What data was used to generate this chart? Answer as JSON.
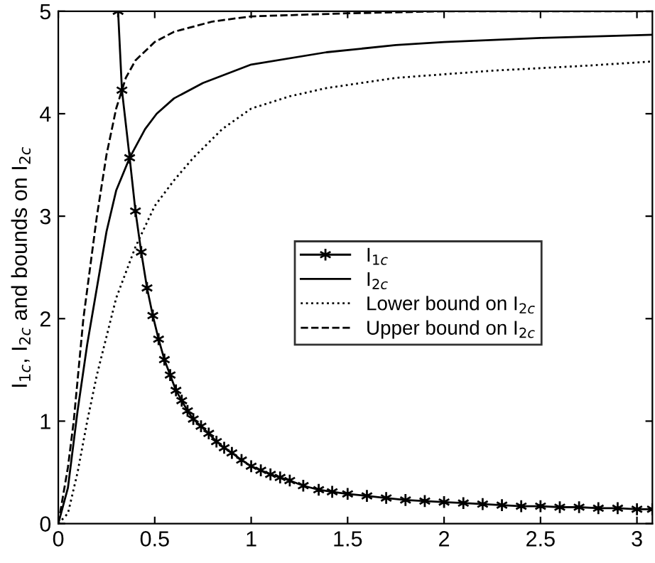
{
  "chart_data": {
    "type": "line",
    "ylabel": "I$_{1c}$, I$_{2c}$ and bounds on I$_{2c}$",
    "xlim": [
      0,
      3.08
    ],
    "ylim": [
      0,
      5
    ],
    "xticks": [
      0,
      0.5,
      1,
      1.5,
      2,
      2.5,
      3
    ],
    "yticks": [
      0,
      1,
      2,
      3,
      4,
      5
    ],
    "grid": false,
    "legend": "right",
    "series": [
      {
        "name": "I$_{1c}$",
        "color": "#000000",
        "marker": "cross",
        "line_style": "solid",
        "x": [
          0.31,
          0.33,
          0.37,
          0.4,
          0.43,
          0.46,
          0.49,
          0.52,
          0.55,
          0.58,
          0.61,
          0.64,
          0.67,
          0.7,
          0.74,
          0.78,
          0.82,
          0.86,
          0.9,
          0.95,
          1.0,
          1.05,
          1.1,
          1.15,
          1.2,
          1.27,
          1.35,
          1.42,
          1.5,
          1.6,
          1.7,
          1.8,
          1.9,
          2.0,
          2.1,
          2.2,
          2.3,
          2.4,
          2.5,
          2.6,
          2.7,
          2.8,
          2.9,
          3.0,
          3.08
        ],
        "values": [
          5.0,
          4.23,
          3.57,
          3.05,
          2.65,
          2.3,
          2.03,
          1.8,
          1.6,
          1.45,
          1.3,
          1.2,
          1.1,
          1.02,
          0.95,
          0.88,
          0.8,
          0.74,
          0.69,
          0.62,
          0.56,
          0.52,
          0.48,
          0.45,
          0.42,
          0.37,
          0.33,
          0.31,
          0.29,
          0.27,
          0.25,
          0.23,
          0.22,
          0.21,
          0.2,
          0.19,
          0.18,
          0.17,
          0.17,
          0.16,
          0.16,
          0.15,
          0.15,
          0.14,
          0.14
        ]
      },
      {
        "name": "I$_{2c}$",
        "color": "#000000",
        "marker": "none",
        "line_style": "solid",
        "x": [
          0,
          0.05,
          0.1,
          0.15,
          0.2,
          0.25,
          0.3,
          0.37,
          0.45,
          0.51,
          0.6,
          0.75,
          1.0,
          1.39,
          1.75,
          2.0,
          2.5,
          3.08
        ],
        "values": [
          0,
          0.35,
          1.1,
          1.75,
          2.3,
          2.85,
          3.25,
          3.57,
          3.85,
          4.0,
          4.15,
          4.3,
          4.48,
          4.6,
          4.67,
          4.7,
          4.74,
          4.77
        ]
      },
      {
        "name": "Lower bound on I$_{2c}$",
        "color": "#000000",
        "marker": "none",
        "line_style": "dotted",
        "x": [
          0,
          0.05,
          0.1,
          0.15,
          0.2,
          0.3,
          0.4,
          0.5,
          0.6,
          0.7,
          0.85,
          1.0,
          1.2,
          1.39,
          1.75,
          2.25,
          2.75,
          3.08
        ],
        "values": [
          0,
          0.1,
          0.5,
          1.0,
          1.45,
          2.2,
          2.7,
          3.1,
          3.35,
          3.57,
          3.85,
          4.05,
          4.17,
          4.25,
          4.35,
          4.42,
          4.47,
          4.51
        ]
      },
      {
        "name": "Upper bound on I$_{2c}$",
        "color": "#000000",
        "marker": "none",
        "line_style": "dashed",
        "x": [
          0,
          0.05,
          0.08,
          0.13,
          0.2,
          0.25,
          0.3,
          0.35,
          0.4,
          0.5,
          0.6,
          0.8,
          1.0,
          1.5,
          2.0,
          3.08
        ],
        "values": [
          0,
          0.55,
          1.0,
          2.0,
          3.0,
          3.6,
          4.05,
          4.35,
          4.52,
          4.7,
          4.8,
          4.9,
          4.95,
          4.98,
          5.0,
          5.0
        ]
      }
    ]
  }
}
